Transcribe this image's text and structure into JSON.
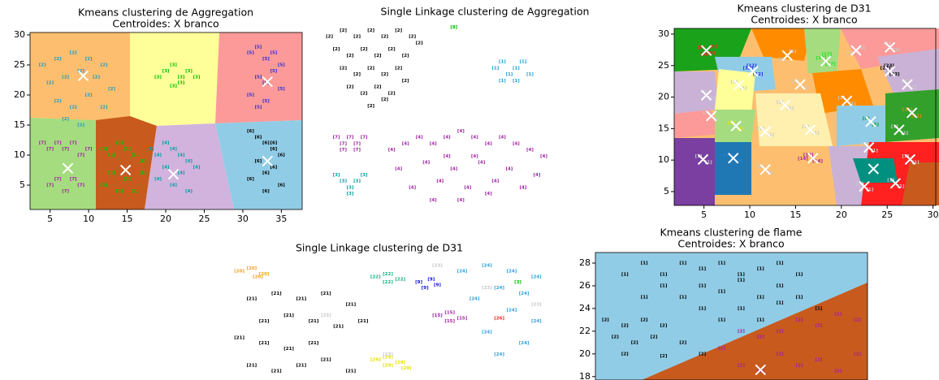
{
  "chart_data": [
    {
      "type": "scatter",
      "title": "Kmeans clustering de Aggregation",
      "subtitle": "Centroides: X branco",
      "xlim": [
        2.4,
        37.7
      ],
      "ylim": [
        0.95,
        30.4
      ],
      "xticks": [
        5,
        10,
        15,
        20,
        25,
        30,
        35
      ],
      "yticks": [
        5,
        10,
        15,
        20,
        25,
        30
      ],
      "series": [
        {
          "name": "[2]",
          "color": "#1a9bc6",
          "x": [
            4,
            6,
            8,
            10,
            12,
            5,
            7,
            9,
            11,
            13,
            6,
            8,
            10,
            12,
            7,
            9
          ],
          "y": [
            25,
            26,
            27,
            26,
            25,
            22,
            23,
            24,
            23,
            21,
            19,
            18,
            20,
            18,
            16,
            15
          ]
        },
        {
          "name": "[3]",
          "color": "#00c000",
          "x": [
            19,
            20,
            21,
            22,
            23,
            24,
            21,
            22
          ],
          "y": [
            23,
            24,
            25,
            22,
            24,
            23,
            21.5,
            23
          ]
        },
        {
          "name": "[5]",
          "color": "#3030d0",
          "x": [
            31,
            32,
            33,
            34,
            35,
            32,
            33,
            34,
            31,
            33,
            35,
            32
          ],
          "y": [
            27,
            28,
            26,
            27,
            25,
            23,
            22,
            24,
            20,
            19,
            21,
            18
          ]
        },
        {
          "name": "[6]",
          "color": "#000000",
          "x": [
            31,
            32,
            33,
            34,
            35,
            32,
            34,
            33,
            31,
            35,
            33,
            34
          ],
          "y": [
            14,
            13,
            12,
            11,
            10,
            9,
            8,
            7,
            6,
            5,
            4,
            12
          ]
        },
        {
          "name": "[1]",
          "color": "#00cc00",
          "x": [
            12,
            13,
            14,
            15,
            16,
            17,
            13,
            15,
            17,
            14,
            16,
            12
          ],
          "y": [
            11,
            10,
            12,
            11,
            10,
            9,
            7,
            6,
            7,
            4,
            4,
            5
          ]
        },
        {
          "name": "[4]",
          "color": "#00a0a0",
          "x": [
            18,
            19,
            20,
            21,
            22,
            23,
            24,
            19,
            21,
            23,
            20,
            22
          ],
          "y": [
            11,
            10,
            12,
            11,
            10,
            9,
            8,
            6,
            5,
            4,
            8,
            7
          ]
        },
        {
          "name": "[7]",
          "color": "#a020a0",
          "x": [
            4,
            5,
            6,
            7,
            8,
            9,
            5,
            7,
            9,
            6,
            10,
            8
          ],
          "y": [
            12,
            11,
            12,
            11,
            12,
            10,
            5,
            4,
            5,
            6,
            11,
            6
          ]
        }
      ],
      "centroids": {
        "x": [
          9.3,
          33.2,
          7.3,
          14.8,
          21,
          33.2
        ],
        "y": [
          23.2,
          22.2,
          7.8,
          7.5,
          6.8,
          9
        ]
      }
    },
    {
      "type": "scatter",
      "title": "Single Linkage clustering de Aggregation",
      "series": [
        {
          "name": "[2]",
          "color": "#000000",
          "x": [
            3,
            5,
            7,
            9,
            11,
            13,
            15,
            4,
            6,
            8,
            10,
            12,
            14,
            5,
            7,
            9,
            11,
            13,
            6,
            8,
            10,
            12,
            14,
            16,
            9,
            11
          ],
          "y": [
            28,
            29,
            28,
            29,
            28,
            29,
            28,
            26,
            25,
            26,
            25,
            26,
            25,
            23,
            22,
            23,
            22,
            23,
            20,
            19,
            20,
            19,
            21,
            27,
            17,
            18
          ]
        },
        {
          "name": "[1]",
          "color": "#1aa0d0",
          "x": [
            27,
            28,
            29,
            30,
            31,
            32,
            28,
            30
          ],
          "y": [
            23,
            24,
            22,
            23,
            24,
            22,
            21,
            21
          ]
        },
        {
          "name": "[7]",
          "color": "#a020a0",
          "x": [
            4,
            5,
            6,
            7,
            8,
            5,
            7
          ],
          "y": [
            12,
            11,
            12,
            11,
            12,
            10,
            10
          ]
        },
        {
          "name": "[4]",
          "color": "#a020a0",
          "x": [
            12,
            14,
            16,
            18,
            20,
            22,
            24,
            26,
            28,
            30,
            32,
            34,
            13,
            17,
            21,
            25,
            29,
            33,
            15,
            19,
            23,
            27,
            31,
            18,
            22,
            26,
            20,
            24
          ],
          "y": [
            10,
            11,
            12,
            11,
            12,
            13,
            12,
            11,
            12,
            11,
            10,
            9,
            7,
            8,
            7,
            8,
            7,
            6,
            4,
            5,
            4,
            5,
            4,
            2,
            2,
            3,
            9,
            9
          ]
        },
        {
          "name": "[3]",
          "color": "#00a0a0",
          "x": [
            4,
            5,
            6,
            7,
            8,
            6
          ],
          "y": [
            6,
            5,
            4,
            5,
            6,
            3
          ]
        },
        {
          "name": "[8]",
          "color": "#00c000",
          "x": [
            21
          ],
          "y": [
            29.5
          ]
        }
      ]
    },
    {
      "type": "scatter",
      "title": "Kmeans clustering de D31",
      "subtitle": "Centroides: X branco",
      "xlim": [
        1.75,
        30.3
      ],
      "ylim": [
        2.8,
        30.9
      ],
      "xticks": [
        5,
        10,
        15,
        20,
        25,
        30
      ],
      "yticks": [
        5,
        10,
        15,
        20,
        25,
        30
      ],
      "series": [
        {
          "name": "[1]",
          "color": "#c8c8c8",
          "x": [
            13.5,
            14.7,
            21,
            22.2,
            25,
            26,
            27,
            27.8,
            5,
            5.8,
            8.3,
            9.3,
            15,
            16,
            5.3,
            6.4,
            13.3,
            14.4,
            20,
            21.2,
            11.2,
            12.3,
            16.1,
            17.2,
            25.8,
            26.9,
            4.4,
            5.5,
            11.2,
            12.3,
            22.5,
            23.6,
            27,
            28.1,
            22,
            23.1,
            25.4,
            26.5
          ],
          "y": [
            26,
            27.2,
            27,
            27.8,
            28.5,
            27.5,
            22.5,
            21.5,
            20.8,
            19.8,
            22.4,
            21.4,
            22.5,
            21.5,
            17.5,
            16.5,
            19.2,
            18.2,
            19.9,
            18.9,
            15,
            14,
            15.3,
            14.3,
            15.3,
            14.3,
            10.6,
            9.6,
            9,
            8,
            12.5,
            11.5,
            10.6,
            9.6,
            6.3,
            5.3,
            6.8,
            5.8
          ]
        },
        {
          "name": "[9]",
          "color": "#ff2020",
          "x": [
            4.7,
            5.8,
            5,
            6
          ],
          "y": [
            27.9,
            27,
            26.8,
            28
          ]
        },
        {
          "name": "[12]",
          "color": "#2030e0",
          "x": [
            9.8,
            10.9,
            10.2
          ],
          "y": [
            24.6,
            23.6,
            25
          ]
        },
        {
          "name": "[17]",
          "color": "#20e020",
          "x": [
            17.8,
            18.8,
            18.4
          ],
          "y": [
            26.2,
            25.2,
            26.8
          ]
        },
        {
          "name": "[23]",
          "color": "#000000",
          "x": [
            24.8,
            25.8,
            25.2
          ],
          "y": [
            24.6,
            23.6,
            25
          ]
        },
        {
          "name": "[6]",
          "color": "#10a030",
          "x": [
            22.7,
            23.7
          ],
          "y": [
            16.6,
            15.6
          ]
        },
        {
          "name": "[3]",
          "color": "#e8e000",
          "x": [
            8,
            9
          ],
          "y": [
            15.9,
            14.9
          ]
        },
        {
          "name": "[14]",
          "color": "#a020a0",
          "x": [
            16.4,
            17.4,
            15.8
          ],
          "y": [
            10.8,
            9.8,
            10.2
          ]
        },
        {
          "name": "[25]",
          "color": "#009080",
          "x": [
            23,
            24
          ],
          "y": [
            9.1,
            8.1
          ]
        },
        {
          "name": "[19]",
          "color": "#2080d0",
          "x": [
            7.7,
            8.7
          ],
          "y": [
            10.8,
            9.8
          ]
        },
        {
          "name": "[11]",
          "color": "#f08000",
          "x": [
            27.2,
            28.2
          ],
          "y": [
            18,
            17
          ]
        }
      ],
      "centroids": {
        "x": [
          5.26,
          10.35,
          14.1,
          18.3,
          21.6,
          25.3,
          25.3,
          27.2,
          5.26,
          8.8,
          15.5,
          5.8,
          13.85,
          20.6,
          27.7,
          8.5,
          11.7,
          16.6,
          23.2,
          26.3,
          16.9,
          4.9,
          8.2,
          11.7,
          23,
          23.5,
          27.5,
          22.5,
          25.9
        ],
        "y": [
          27.4,
          24.1,
          26.6,
          25.7,
          27.4,
          27.9,
          24.1,
          22,
          20.3,
          21.9,
          22,
          17,
          18.7,
          19.4,
          17.5,
          15.4,
          14.5,
          14.8,
          16.1,
          14.8,
          10.3,
          10.1,
          10.3,
          8.5,
          12,
          8.6,
          10.1,
          5.8,
          6.3
        ]
      }
    },
    {
      "type": "scatter",
      "title": "Single Linkage clustering de D31",
      "series": [
        {
          "name": "[20]",
          "color": "#f0a020",
          "x": [
            4,
            5,
            6,
            5.5
          ],
          "y": [
            28,
            28.5,
            27.5,
            27
          ]
        },
        {
          "name": "[21]",
          "color": "#000000",
          "x": [
            5,
            7,
            9,
            11,
            13,
            6,
            8,
            10,
            12,
            14,
            4,
            6,
            8,
            10,
            5,
            7,
            9,
            11,
            13
          ],
          "y": [
            23,
            24,
            23,
            24,
            22,
            19,
            20,
            19,
            18,
            19,
            16,
            15,
            14,
            15,
            11,
            10,
            11,
            12,
            10
          ]
        },
        {
          "name": "[22]",
          "color": "#10b080",
          "x": [
            15,
            16,
            17,
            16
          ],
          "y": [
            27,
            27.5,
            26.5,
            26
          ]
        },
        {
          "name": "[9]",
          "color": "#1010e0",
          "x": [
            18.5,
            19.5,
            20,
            19
          ],
          "y": [
            26,
            26.5,
            25.5,
            25
          ]
        },
        {
          "name": "[15]",
          "color": "#a020a0",
          "x": [
            20,
            21,
            22,
            21
          ],
          "y": [
            20,
            20.5,
            19.5,
            19
          ]
        },
        {
          "name": "[24]",
          "color": "#2aa0dc",
          "x": [
            22,
            24,
            26,
            28,
            25,
            27,
            23,
            26,
            28,
            24,
            27,
            25
          ],
          "y": [
            28,
            29,
            28,
            27,
            25,
            24,
            23,
            21,
            19,
            17,
            15,
            13
          ]
        },
        {
          "name": "[29]",
          "color": "#e8e000",
          "x": [
            15,
            16,
            17,
            16,
            17.5
          ],
          "y": [
            12,
            12.5,
            11.5,
            11,
            10.5
          ]
        },
        {
          "name": "[23]",
          "color": "#c8c8c8",
          "x": [
            20,
            24,
            28,
            11,
            16
          ],
          "y": [
            29,
            25,
            22,
            20,
            13
          ]
        },
        {
          "name": "[26]",
          "color": "#ff2020",
          "x": [
            25
          ],
          "y": [
            19.5
          ]
        },
        {
          "name": "[3]",
          "color": "#00c000",
          "x": [
            26.5
          ],
          "y": [
            26
          ]
        }
      ]
    },
    {
      "type": "scatter",
      "title": "Kmeans clustering de flame",
      "subtitle": "Centroides: X branco",
      "ylim": [
        17.7,
        28.93
      ],
      "yticks": [
        18,
        20,
        22,
        24,
        26,
        28
      ],
      "series": [
        {
          "name": "[1]",
          "color": "#000000",
          "x": [
            2,
            3,
            4,
            5,
            6,
            7,
            8,
            9,
            10,
            11,
            4,
            6,
            8,
            10,
            3,
            5,
            7,
            9,
            11,
            6,
            8,
            10,
            12,
            7,
            9
          ],
          "y": [
            27,
            28,
            27,
            28,
            27.5,
            28,
            27,
            27.5,
            28,
            27,
            26,
            26,
            26.5,
            26,
            25,
            25,
            25.5,
            25,
            25,
            24,
            24,
            24.5,
            24,
            23,
            23
          ]
        },
        {
          "name": "[2]",
          "color": "#000000",
          "x": [
            1,
            2,
            3,
            4,
            1.5,
            2.5,
            3.5,
            5,
            2,
            4,
            6
          ],
          "y": [
            23,
            22.5,
            23,
            22.5,
            21.5,
            21,
            21.5,
            21,
            20,
            19.8,
            20
          ]
        },
        {
          "name": "[2]",
          "color": "#a020a0",
          "x": [
            8,
            9,
            10,
            11,
            12,
            13,
            14,
            10,
            12,
            14,
            9,
            11,
            13,
            7,
            8
          ],
          "y": [
            22,
            21.5,
            22,
            23,
            22.5,
            23.5,
            23,
            20,
            19.5,
            20,
            18.5,
            19,
            18.5,
            20.5,
            19
          ]
        }
      ],
      "centroids": {
        "x": [
          9
        ],
        "y": [
          18.6
        ]
      }
    }
  ]
}
